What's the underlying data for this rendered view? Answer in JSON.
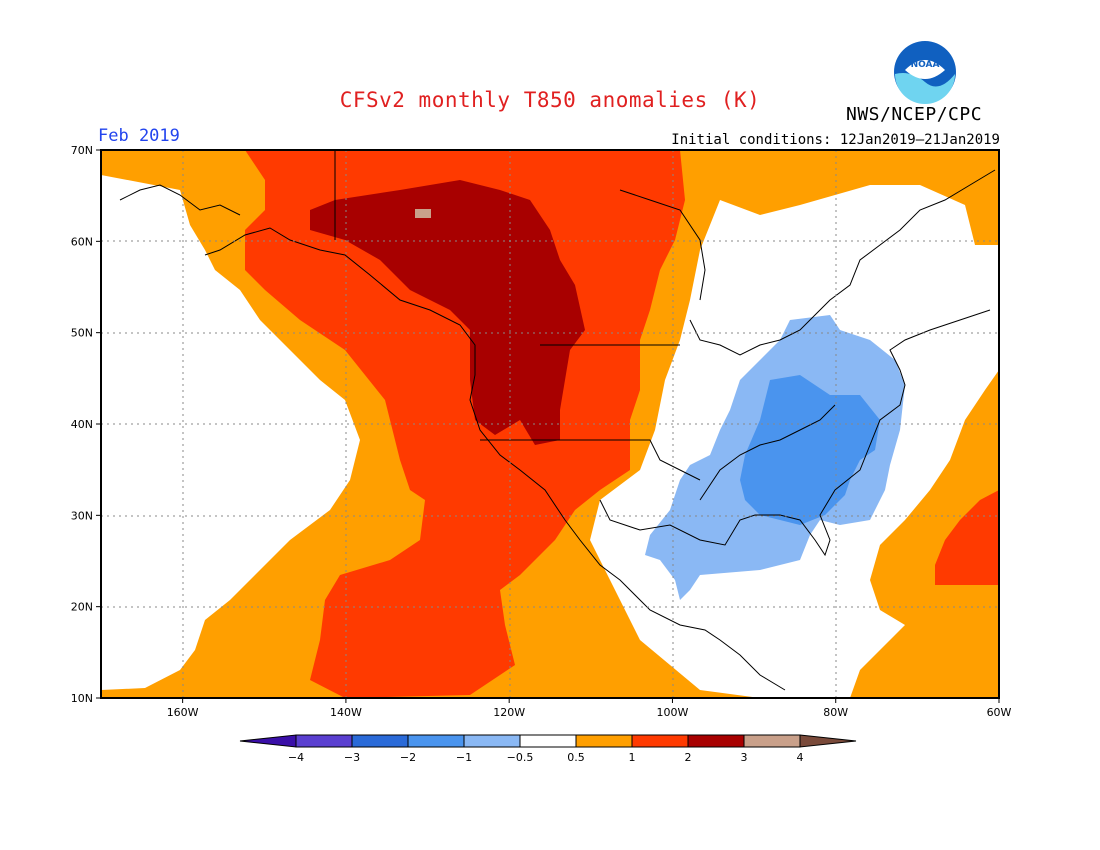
{
  "title": "CFSv2 monthly T850 anomalies (K)",
  "month_label": "Feb 2019",
  "initial_conditions": "Initial conditions: 12Jan2019–21Jan2019",
  "org_label": "NWS/NCEP/CPC",
  "logo_text": "NOAA",
  "map": {
    "lon_range": [
      -170,
      -60
    ],
    "lat_range": [
      10,
      70
    ],
    "lat_ticks": [
      {
        "value": 70,
        "label": "70N"
      },
      {
        "value": 60,
        "label": "60N"
      },
      {
        "value": 50,
        "label": "50N"
      },
      {
        "value": 40,
        "label": "40N"
      },
      {
        "value": 30,
        "label": "30N"
      },
      {
        "value": 20,
        "label": "20N"
      },
      {
        "value": 10,
        "label": "10N"
      }
    ],
    "lon_ticks": [
      {
        "value": -160,
        "label": "160W"
      },
      {
        "value": -140,
        "label": "140W"
      },
      {
        "value": -120,
        "label": "120W"
      },
      {
        "value": -100,
        "label": "100W"
      },
      {
        "value": -80,
        "label": "80W"
      },
      {
        "value": -60,
        "label": "60W"
      }
    ]
  },
  "colorbar": {
    "labels": [
      "−4",
      "−3",
      "−2",
      "−1",
      "−0.5",
      "0.5",
      "1",
      "2",
      "3",
      "4"
    ],
    "colors": [
      "#3a0fa8",
      "#5a3fd0",
      "#2a6ad8",
      "#4a94ee",
      "#8ab8f4",
      "#ffffff",
      "#ff9f00",
      "#ff3a00",
      "#a80000",
      "#c9a08a",
      "#7a4a3a"
    ]
  }
}
